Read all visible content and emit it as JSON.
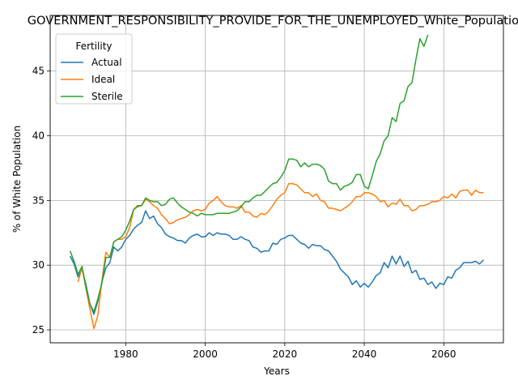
{
  "chart_data": {
    "type": "line",
    "title": "GOVERNMENT_RESPONSIBILITY_PROVIDE_FOR_THE_UNEMPLOYED_White_Population",
    "xlabel": "Years",
    "ylabel": "% of White Population",
    "xlim": [
      1961,
      2075
    ],
    "ylim": [
      24,
      49.3
    ],
    "xticks": [
      1980,
      2000,
      2020,
      2040,
      2060
    ],
    "yticks": [
      25,
      30,
      35,
      40,
      45
    ],
    "grid": true,
    "legend": {
      "title": "Fertility",
      "placement": "top-left"
    },
    "series": [
      {
        "name": "Actual",
        "color": "#1f77b4",
        "x": [
          1966,
          1967,
          1968,
          1969,
          1970,
          1971,
          1972,
          1973,
          1974,
          1975,
          1976,
          1977,
          1978,
          1979,
          1980,
          1981,
          1982,
          1983,
          1984,
          1985,
          1986,
          1987,
          1988,
          1989,
          1990,
          1991,
          1992,
          1993,
          1994,
          1995,
          1996,
          1997,
          1998,
          1999,
          2000,
          2001,
          2002,
          2003,
          2004,
          2005,
          2006,
          2007,
          2008,
          2009,
          2010,
          2011,
          2012,
          2013,
          2014,
          2015,
          2016,
          2017,
          2018,
          2019,
          2020,
          2021,
          2022,
          2023,
          2024,
          2025,
          2026,
          2027,
          2028,
          2029,
          2030,
          2031,
          2032,
          2033,
          2034,
          2035,
          2036,
          2037,
          2038,
          2039,
          2040,
          2041,
          2042,
          2043,
          2044,
          2045,
          2046,
          2047,
          2048,
          2049,
          2050,
          2051,
          2052,
          2053,
          2054,
          2055,
          2056,
          2057,
          2058,
          2059,
          2060,
          2061,
          2062,
          2063,
          2064,
          2065,
          2066,
          2067,
          2068,
          2069,
          2070
        ],
        "y": [
          30.7,
          30.1,
          29.1,
          29.7,
          28.5,
          27.0,
          26.2,
          27.2,
          28.7,
          29.8,
          30.2,
          31.4,
          31.1,
          31.4,
          32.0,
          32.3,
          32.8,
          33.1,
          33.3,
          34.2,
          33.6,
          33.8,
          33.2,
          32.9,
          32.4,
          32.2,
          32.1,
          31.9,
          31.9,
          31.7,
          32.1,
          32.3,
          32.4,
          32.2,
          32.2,
          32.5,
          32.3,
          32.5,
          32.4,
          32.4,
          32.3,
          32.0,
          32.0,
          32.2,
          32.0,
          31.9,
          31.4,
          31.3,
          31.0,
          31.1,
          31.1,
          31.7,
          31.6,
          32.0,
          32.1,
          32.3,
          32.3,
          32.0,
          31.7,
          31.6,
          31.3,
          31.6,
          31.5,
          31.5,
          31.2,
          31.1,
          30.7,
          30.3,
          29.7,
          29.4,
          29.1,
          28.5,
          28.8,
          28.3,
          28.6,
          28.3,
          28.7,
          29.2,
          29.4,
          30.2,
          29.8,
          30.7,
          30.1,
          30.7,
          29.9,
          30.3,
          29.4,
          29.6,
          28.9,
          29.0,
          28.5,
          28.7,
          28.2,
          28.6,
          28.5,
          29.1,
          29.0,
          29.6,
          29.8,
          30.2,
          30.2,
          30.2,
          30.3,
          30.1,
          30.4
        ],
        "x_": null
      },
      {
        "name": "Ideal",
        "color": "#ff7f0e",
        "x": [
          1968,
          1969,
          1970,
          1971,
          1972,
          1973,
          1974,
          1975,
          1976,
          1977,
          1978,
          1979,
          1980,
          1981,
          1982,
          1983,
          1984,
          1985,
          1986,
          1987,
          1988,
          1989,
          1990,
          1991,
          1992,
          1993,
          1994,
          1995,
          1996,
          1997,
          1998,
          1999,
          2000,
          2001,
          2002,
          2003,
          2004,
          2005,
          2006,
          2007,
          2008,
          2009,
          2010,
          2011,
          2012,
          2013,
          2014,
          2015,
          2016,
          2017,
          2018,
          2019,
          2020,
          2021,
          2022,
          2023,
          2024,
          2025,
          2026,
          2027,
          2028,
          2029,
          2030,
          2031,
          2032,
          2033,
          2034,
          2035,
          2036,
          2037,
          2038,
          2039,
          2040,
          2041,
          2042,
          2043,
          2044,
          2045,
          2046,
          2047,
          2048,
          2049,
          2050,
          2051,
          2052,
          2053,
          2054,
          2055,
          2056,
          2057,
          2058,
          2059,
          2060,
          2061,
          2062,
          2063,
          2064,
          2065,
          2066,
          2067,
          2068,
          2069,
          2070
        ],
        "y": [
          28.7,
          29.8,
          28.2,
          26.6,
          25.1,
          26.1,
          28.8,
          31.0,
          30.6,
          31.8,
          32.0,
          32.0,
          32.2,
          32.9,
          34.3,
          34.5,
          34.6,
          35.1,
          34.9,
          34.6,
          34.4,
          33.9,
          33.6,
          33.2,
          33.3,
          33.5,
          33.6,
          33.7,
          33.9,
          34.2,
          34.3,
          34.2,
          34.3,
          34.8,
          35.0,
          35.3,
          34.9,
          34.6,
          34.5,
          34.5,
          34.4,
          34.6,
          34.1,
          34.1,
          33.8,
          33.7,
          34.0,
          33.9,
          34.2,
          34.6,
          35.1,
          35.4,
          35.6,
          36.3,
          36.3,
          36.2,
          35.9,
          35.6,
          35.6,
          35.3,
          35.5,
          35.0,
          34.9,
          34.4,
          34.4,
          34.3,
          34.2,
          34.4,
          34.6,
          34.9,
          35.3,
          35.3,
          35.6,
          35.6,
          35.5,
          35.3,
          34.9,
          35.0,
          34.5,
          34.8,
          34.7,
          35.1,
          34.6,
          34.6,
          34.2,
          34.3,
          34.6,
          34.6,
          34.7,
          34.9,
          34.9,
          35.0,
          35.3,
          35.2,
          35.5,
          35.2,
          35.7,
          35.8,
          35.8,
          35.4,
          35.8,
          35.6,
          35.6
        ]
      },
      {
        "name": "Sterile",
        "color": "#2ca02c",
        "x": [
          1966,
          1967,
          1968,
          1969,
          1970,
          1971,
          1972,
          1973,
          1974,
          1975,
          1976,
          1977,
          1978,
          1979,
          1980,
          1981,
          1982,
          1983,
          1984,
          1985,
          1986,
          1987,
          1988,
          1989,
          1990,
          1991,
          1992,
          1993,
          1994,
          1995,
          1996,
          1997,
          1998,
          1999,
          2000,
          2001,
          2002,
          2003,
          2004,
          2005,
          2006,
          2007,
          2008,
          2009,
          2010,
          2011,
          2012,
          2013,
          2014,
          2015,
          2016,
          2017,
          2018,
          2019,
          2020,
          2021,
          2022,
          2023,
          2024,
          2025,
          2026,
          2027,
          2028,
          2029,
          2030,
          2031,
          2032,
          2033,
          2034,
          2035,
          2036,
          2037,
          2038,
          2039,
          2040,
          2041,
          2042,
          2043,
          2044,
          2045,
          2046,
          2047,
          2048,
          2049,
          2050,
          2051,
          2052,
          2053,
          2054,
          2055,
          2056
        ],
        "y": [
          31.1,
          30.3,
          29.3,
          29.9,
          28.3,
          27.0,
          26.4,
          27.4,
          28.6,
          30.6,
          30.6,
          31.8,
          32.0,
          32.2,
          32.7,
          33.4,
          34.3,
          34.6,
          34.6,
          35.2,
          35.0,
          34.9,
          34.9,
          34.6,
          34.7,
          35.1,
          35.2,
          34.8,
          34.5,
          34.3,
          34.1,
          34.0,
          33.8,
          34.0,
          33.9,
          33.9,
          33.9,
          34.0,
          34.0,
          34.0,
          34.0,
          34.1,
          34.2,
          34.5,
          34.9,
          34.9,
          35.2,
          35.4,
          35.4,
          35.7,
          36.0,
          36.3,
          36.4,
          36.8,
          37.3,
          38.2,
          38.2,
          38.1,
          37.6,
          37.9,
          37.6,
          37.8,
          37.8,
          37.7,
          37.4,
          36.5,
          36.3,
          36.3,
          35.8,
          36.1,
          36.2,
          36.4,
          37.0,
          37.0,
          36.1,
          35.9,
          36.9,
          38.0,
          38.6,
          39.6,
          40.0,
          41.4,
          41.1,
          42.5,
          42.7,
          43.8,
          44.1,
          45.9,
          47.5,
          46.9,
          47.8
        ]
      }
    ]
  }
}
